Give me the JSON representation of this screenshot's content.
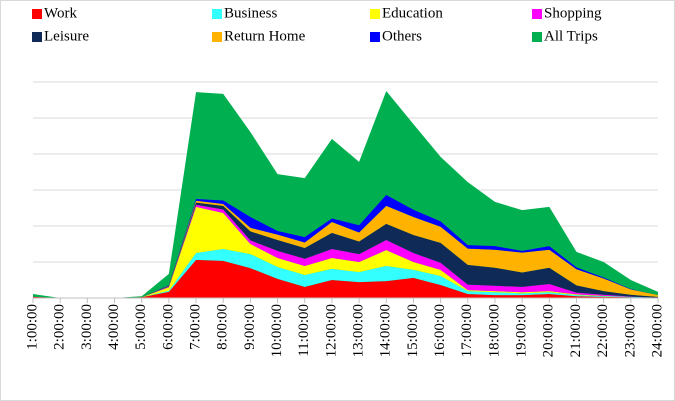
{
  "chart_data": {
    "type": "area",
    "stacked": true,
    "grid": true,
    "legend": "top",
    "categories": [
      "1:00:00",
      "2:00:00",
      "3:00:00",
      "4:00:00",
      "5:00:00",
      "6:00:00",
      "7:00:00",
      "8:00:00",
      "9:00:00",
      "10:00:00",
      "11:00:00",
      "12:00:00",
      "13:00:00",
      "14:00:00",
      "15:00:00",
      "16:00:00",
      "17:00:00",
      "18:00:00",
      "19:00:00",
      "20:00:00",
      "21:00:00",
      "22:00:00",
      "23:00:00",
      "24:00:00"
    ],
    "ylim": [
      0,
      6
    ],
    "yticks": [
      0,
      1,
      2,
      3,
      4,
      5,
      6
    ],
    "series": [
      {
        "name": "Work",
        "color": "#ff0000",
        "values": [
          0.03,
          0,
          0,
          0,
          0.02,
          0.17,
          1.06,
          1.03,
          0.83,
          0.53,
          0.31,
          0.5,
          0.44,
          0.47,
          0.56,
          0.36,
          0.11,
          0.08,
          0.08,
          0.11,
          0.05,
          0.03,
          0.02,
          0.01
        ]
      },
      {
        "name": "Business",
        "color": "#33ffff",
        "values": [
          0,
          0,
          0,
          0,
          0,
          0.03,
          0.19,
          0.33,
          0.39,
          0.33,
          0.33,
          0.31,
          0.28,
          0.42,
          0.22,
          0.25,
          0.08,
          0.08,
          0.05,
          0.05,
          0.03,
          0.02,
          0.01,
          0
        ]
      },
      {
        "name": "Education",
        "color": "#ffff00",
        "values": [
          0,
          0,
          0,
          0,
          0,
          0.1,
          1.28,
          1.0,
          0.28,
          0.25,
          0.25,
          0.3,
          0.28,
          0.44,
          0.22,
          0.17,
          0.03,
          0.03,
          0.03,
          0.03,
          0.02,
          0.01,
          0,
          0
        ]
      },
      {
        "name": "Shopping",
        "color": "#ff00ff",
        "values": [
          0,
          0,
          0,
          0,
          0,
          0.02,
          0.06,
          0.1,
          0.1,
          0.2,
          0.2,
          0.25,
          0.22,
          0.28,
          0.25,
          0.2,
          0.15,
          0.15,
          0.15,
          0.2,
          0.05,
          0.03,
          0.01,
          0
        ]
      },
      {
        "name": "Leisure",
        "color": "#0f2a57",
        "values": [
          0,
          0,
          0,
          0,
          0,
          0.02,
          0.06,
          0.1,
          0.25,
          0.3,
          0.3,
          0.45,
          0.35,
          0.45,
          0.5,
          0.55,
          0.55,
          0.5,
          0.4,
          0.45,
          0.2,
          0.1,
          0.05,
          0.02
        ]
      },
      {
        "name": "Return Home",
        "color": "#ffb300",
        "values": [
          0,
          0,
          0,
          0,
          0,
          0.01,
          0.05,
          0.05,
          0.1,
          0.15,
          0.15,
          0.3,
          0.25,
          0.5,
          0.5,
          0.45,
          0.45,
          0.5,
          0.55,
          0.5,
          0.45,
          0.35,
          0.15,
          0.05
        ]
      },
      {
        "name": "Others",
        "color": "#0000ff",
        "values": [
          0,
          0,
          0,
          0,
          0,
          0.01,
          0.05,
          0.1,
          0.3,
          0.1,
          0.15,
          0.1,
          0.2,
          0.3,
          0.2,
          0.15,
          0.1,
          0.1,
          0.05,
          0.1,
          0.05,
          0.03,
          0.01,
          0
        ]
      },
      {
        "name": "All Trips",
        "color": "#00b050",
        "stack": false,
        "values": [
          0.11,
          0,
          0,
          0,
          0.05,
          0.67,
          5.72,
          5.67,
          4.61,
          3.44,
          3.33,
          4.42,
          3.78,
          5.75,
          4.83,
          3.92,
          3.22,
          2.67,
          2.44,
          2.53,
          1.28,
          1.0,
          0.5,
          0.17
        ]
      }
    ]
  }
}
